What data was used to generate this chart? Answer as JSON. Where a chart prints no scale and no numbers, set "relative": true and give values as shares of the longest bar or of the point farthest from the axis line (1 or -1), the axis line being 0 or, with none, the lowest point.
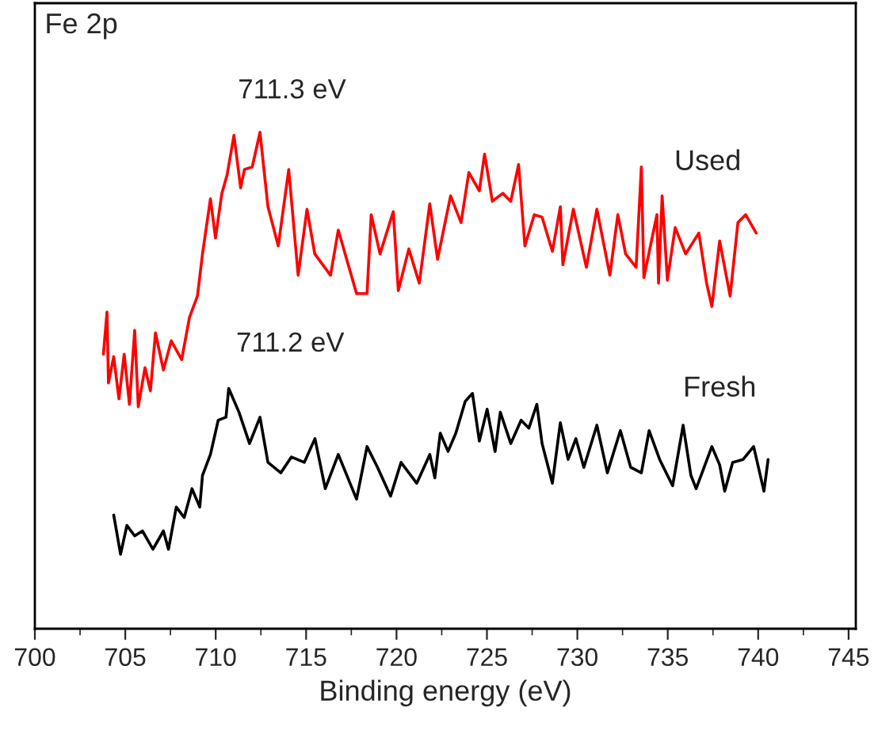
{
  "chart_data": {
    "type": "line",
    "title": "Fe 2p",
    "xlabel": "Binding energy (eV)",
    "relative": true,
    "xlim": [
      700,
      745.4
    ],
    "xticks": [
      700,
      705,
      710,
      715,
      720,
      725,
      730,
      735,
      740,
      745
    ],
    "grid": false,
    "legend": false,
    "marker": "none",
    "line_style": "solid",
    "annotations": [
      {
        "text": "711.3 eV",
        "x": 711.3,
        "y": 0.994
      },
      {
        "text": "711.2 eV",
        "x": 711.2,
        "y": 0.484
      }
    ],
    "series": [
      {
        "name": "Used",
        "color": "#ff0000",
        "x": [
          703.79,
          703.99,
          704.07,
          704.36,
          704.65,
          704.94,
          705.23,
          705.52,
          705.72,
          706.09,
          706.39,
          706.67,
          707.11,
          707.54,
          708.12,
          708.55,
          708.99,
          709.27,
          709.71,
          709.99,
          710.34,
          710.63,
          711.01,
          711.38,
          711.59,
          712.02,
          712.45,
          712.89,
          713.46,
          714.04,
          714.56,
          715.05,
          715.48,
          716.35,
          716.78,
          717.79,
          718.37,
          718.6,
          719.09,
          719.82,
          720.1,
          720.68,
          721.26,
          721.84,
          722.27,
          722.99,
          723.57,
          724.0,
          724.58,
          724.87,
          725.3,
          725.88,
          726.32,
          726.75,
          727.1,
          727.62,
          728.05,
          728.62,
          729.06,
          729.2,
          729.78,
          730.5,
          731.08,
          731.8,
          732.24,
          732.67,
          733.25,
          733.54,
          733.68,
          734.4,
          734.49,
          734.69,
          734.98,
          735.41,
          735.99,
          736.72,
          737.15,
          737.44,
          737.87,
          738.45,
          738.88,
          739.31,
          739.89
        ],
        "values": [
          0.553,
          0.638,
          0.495,
          0.548,
          0.463,
          0.553,
          0.452,
          0.601,
          0.447,
          0.526,
          0.479,
          0.596,
          0.521,
          0.58,
          0.542,
          0.627,
          0.67,
          0.755,
          0.866,
          0.787,
          0.877,
          0.914,
          0.994,
          0.888,
          0.925,
          0.93,
          1.0,
          0.85,
          0.771,
          0.925,
          0.712,
          0.845,
          0.755,
          0.712,
          0.803,
          0.675,
          0.675,
          0.834,
          0.755,
          0.84,
          0.681,
          0.765,
          0.696,
          0.856,
          0.744,
          0.872,
          0.818,
          0.919,
          0.882,
          0.956,
          0.861,
          0.877,
          0.861,
          0.935,
          0.771,
          0.834,
          0.829,
          0.76,
          0.85,
          0.733,
          0.845,
          0.728,
          0.845,
          0.712,
          0.834,
          0.755,
          0.728,
          0.93,
          0.707,
          0.834,
          0.696,
          0.872,
          0.702,
          0.808,
          0.755,
          0.797,
          0.696,
          0.649,
          0.781,
          0.67,
          0.818,
          0.834,
          0.797
        ]
      },
      {
        "name": "Fresh",
        "color": "#000000",
        "x": [
          704.36,
          704.74,
          705.09,
          705.52,
          705.95,
          706.53,
          707.11,
          707.39,
          707.82,
          708.26,
          708.69,
          709.12,
          709.27,
          709.71,
          710.14,
          710.57,
          710.72,
          711.29,
          711.87,
          712.45,
          712.89,
          713.6,
          714.19,
          714.9,
          715.49,
          716.06,
          716.78,
          717.79,
          718.37,
          718.95,
          719.67,
          720.25,
          721.12,
          721.84,
          722.12,
          722.42,
          722.85,
          723.28,
          723.8,
          724.2,
          724.58,
          725.01,
          725.45,
          725.74,
          726.32,
          726.89,
          727.32,
          727.76,
          728.05,
          728.62,
          729.06,
          729.49,
          729.92,
          730.36,
          731.08,
          731.66,
          732.38,
          732.95,
          733.54,
          733.97,
          734.55,
          735.27,
          735.85,
          736.28,
          736.57,
          737.44,
          737.87,
          738.15,
          738.59,
          739.17,
          739.75,
          740.32,
          740.55
        ],
        "values": [
          0.229,
          0.15,
          0.208,
          0.187,
          0.197,
          0.16,
          0.197,
          0.16,
          0.245,
          0.224,
          0.282,
          0.245,
          0.309,
          0.351,
          0.42,
          0.426,
          0.484,
          0.436,
          0.373,
          0.426,
          0.335,
          0.314,
          0.346,
          0.335,
          0.383,
          0.282,
          0.351,
          0.261,
          0.367,
          0.325,
          0.267,
          0.335,
          0.293,
          0.351,
          0.304,
          0.394,
          0.357,
          0.394,
          0.458,
          0.474,
          0.378,
          0.442,
          0.357,
          0.436,
          0.373,
          0.42,
          0.404,
          0.452,
          0.373,
          0.293,
          0.415,
          0.341,
          0.383,
          0.325,
          0.41,
          0.314,
          0.399,
          0.325,
          0.314,
          0.399,
          0.341,
          0.288,
          0.41,
          0.309,
          0.282,
          0.367,
          0.33,
          0.277,
          0.335,
          0.341,
          0.367,
          0.277,
          0.341
        ]
      }
    ]
  }
}
